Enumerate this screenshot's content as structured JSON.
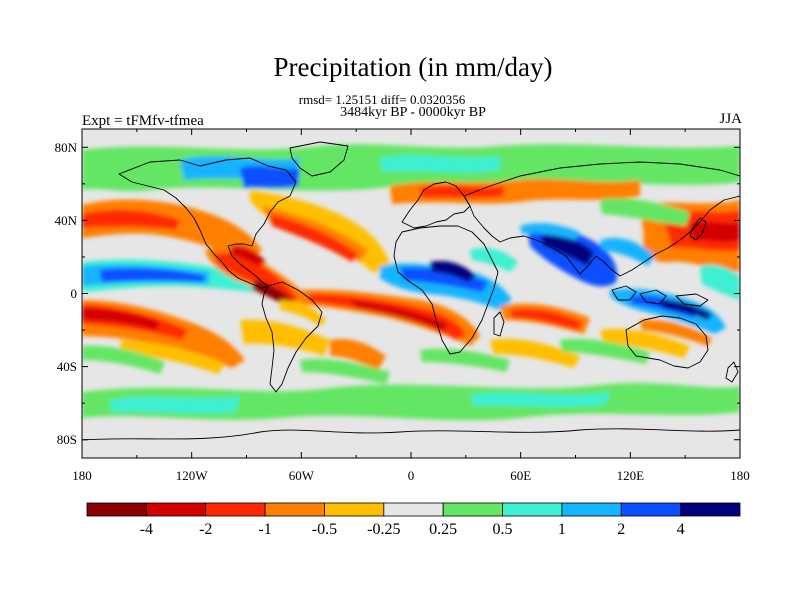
{
  "title": "Precipitation (in mm/day)",
  "stats_line": "rmsd= 1.25151 diff= 0.0320356",
  "period": "3484kyr BP - 0000kyr BP",
  "experiment": "Expt = tFMfv-tfmea",
  "season": "JJA",
  "map": {
    "type": "filled-contour-map",
    "projection": "cylindrical-equidistant",
    "lon_range": [
      -180,
      180
    ],
    "lat_range": [
      -90,
      90
    ],
    "lon_ticks": [
      "180",
      "120W",
      "60W",
      "0",
      "60E",
      "120E",
      "180"
    ],
    "lat_ticks": [
      "80N",
      "40N",
      "0",
      "40S",
      "80S"
    ]
  },
  "colorbar": {
    "labels": [
      "-4",
      "-2",
      "-1",
      "-0.5",
      "-0.25",
      "0.25",
      "0.5",
      "1",
      "2",
      "4"
    ],
    "colors": [
      "#8b0000",
      "#d40000",
      "#ff2a00",
      "#ff7f00",
      "#ffbf00",
      "#e6e6e6",
      "#64e664",
      "#3cf0d2",
      "#14b4ff",
      "#0a50ff",
      "#00007f"
    ]
  }
}
